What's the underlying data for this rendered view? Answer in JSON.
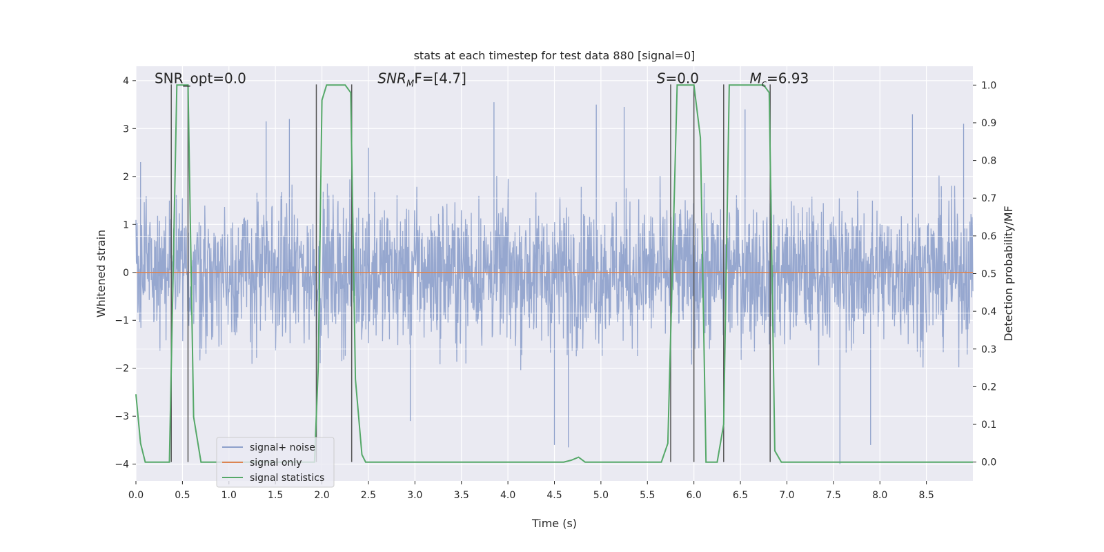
{
  "chart_data": {
    "type": "line",
    "title": "stats at each timestep for test data 880 [signal=0]",
    "xlabel": "Time (s)",
    "ylabel": "Whitened strain",
    "y2label": "Detection probability/MF",
    "xlim": [
      0,
      9.0
    ],
    "ylim": [
      -4.35,
      4.3
    ],
    "y2lim": [
      -0.05,
      1.05
    ],
    "xticks": [
      0.0,
      0.5,
      1.0,
      1.5,
      2.0,
      2.5,
      3.0,
      3.5,
      4.0,
      4.5,
      5.0,
      5.5,
      6.0,
      6.5,
      7.0,
      7.5,
      8.0,
      8.5
    ],
    "xtick_labels": [
      "0.0",
      "0.5",
      "1.0",
      "1.5",
      "2.0",
      "2.5",
      "3.0",
      "3.5",
      "4.0",
      "4.5",
      "5.0",
      "5.5",
      "6.0",
      "6.5",
      "7.0",
      "7.5",
      "8.0",
      "8.5"
    ],
    "yticks": [
      4,
      3,
      2,
      1,
      0,
      -1,
      -2,
      -3,
      -4
    ],
    "ytick_labels": [
      "4",
      "3",
      "2",
      "1",
      "0",
      "−1",
      "−2",
      "−3",
      "−4"
    ],
    "y2ticks": [
      1.0,
      0.9,
      0.8,
      0.7,
      0.6,
      0.5,
      0.4,
      0.3,
      0.2,
      0.1,
      0.0
    ],
    "y2tick_labels": [
      "1.0",
      "0.9",
      "0.8",
      "0.7",
      "0.6",
      "0.5",
      "0.4",
      "0.3",
      "0.2",
      "0.1",
      "0.0"
    ],
    "grid": true,
    "legend_position": "lower-left",
    "series": [
      {
        "name": "signal+ noise",
        "color": "#8da0cb",
        "kind": "noise",
        "envelope": {
          "typical_peak": 2.0,
          "max": 3.7,
          "min": -4.0
        },
        "extreme_peaks": [
          {
            "x": 0.05,
            "y": 2.3
          },
          {
            "x": 1.4,
            "y": 3.15
          },
          {
            "x": 1.65,
            "y": 3.2
          },
          {
            "x": 2.5,
            "y": 2.6
          },
          {
            "x": 3.85,
            "y": 3.55
          },
          {
            "x": 4.95,
            "y": 3.5
          },
          {
            "x": 5.25,
            "y": 3.45
          },
          {
            "x": 6.55,
            "y": 3.4
          },
          {
            "x": 8.35,
            "y": 3.3
          },
          {
            "x": 8.9,
            "y": 3.1
          },
          {
            "x": 4.5,
            "y": -3.6
          },
          {
            "x": 4.65,
            "y": -3.65
          },
          {
            "x": 7.57,
            "y": -4.0
          },
          {
            "x": 7.9,
            "y": -3.6
          },
          {
            "x": 2.95,
            "y": -3.1
          }
        ]
      },
      {
        "name": "signal only",
        "color": "#dd8452",
        "kind": "line",
        "axis": "left",
        "x": [
          0.0,
          9.0
        ],
        "y": [
          0.0,
          0.0
        ]
      },
      {
        "name": "signal statistics",
        "color": "#55a868",
        "kind": "line",
        "axis": "right",
        "x": [
          0.0,
          0.05,
          0.1,
          0.2,
          0.36,
          0.4,
          0.44,
          0.56,
          0.62,
          0.7,
          1.5,
          1.92,
          1.96,
          2.0,
          2.05,
          2.25,
          2.31,
          2.36,
          2.43,
          2.47,
          3.0,
          4.6,
          4.68,
          4.76,
          4.83,
          5.2,
          5.65,
          5.72,
          5.82,
          6.0,
          6.07,
          6.13,
          6.25,
          6.32,
          6.38,
          6.75,
          6.81,
          6.87,
          6.94,
          7.5,
          8.5,
          9.0
        ],
        "y": [
          0.18,
          0.05,
          0.0,
          0.0,
          0.0,
          0.5,
          1.0,
          1.0,
          0.12,
          0.0,
          0.0,
          0.0,
          0.25,
          0.96,
          1.0,
          1.0,
          0.98,
          0.22,
          0.02,
          0.0,
          0.0,
          0.0,
          0.005,
          0.013,
          0.0,
          0.0,
          0.0,
          0.05,
          1.0,
          1.0,
          0.86,
          0.0,
          0.0,
          0.1,
          1.0,
          1.0,
          0.98,
          0.03,
          0.0,
          0.0,
          0.0,
          0.0
        ]
      }
    ],
    "vlines": [
      0.38,
      0.56,
      1.94,
      2.32,
      5.75,
      6.0,
      6.32,
      6.82
    ],
    "annotations": [
      {
        "id": "snr-opt",
        "text": "SNR_opt=0.0",
        "x": 0.2,
        "y": 4.05
      },
      {
        "id": "snr-mf",
        "text": "SNRMF=[4.7]",
        "base": "SNR",
        "sub": "M",
        "rest": "F=[4.7]",
        "x": 2.6,
        "y": 4.05
      },
      {
        "id": "s-val",
        "base": "S",
        "rest": "=0.0",
        "x": 5.6,
        "y": 4.05
      },
      {
        "id": "mc-val",
        "base": "M",
        "sub": "c",
        "rest": "=6.93",
        "x": 6.6,
        "y": 4.05
      }
    ]
  }
}
